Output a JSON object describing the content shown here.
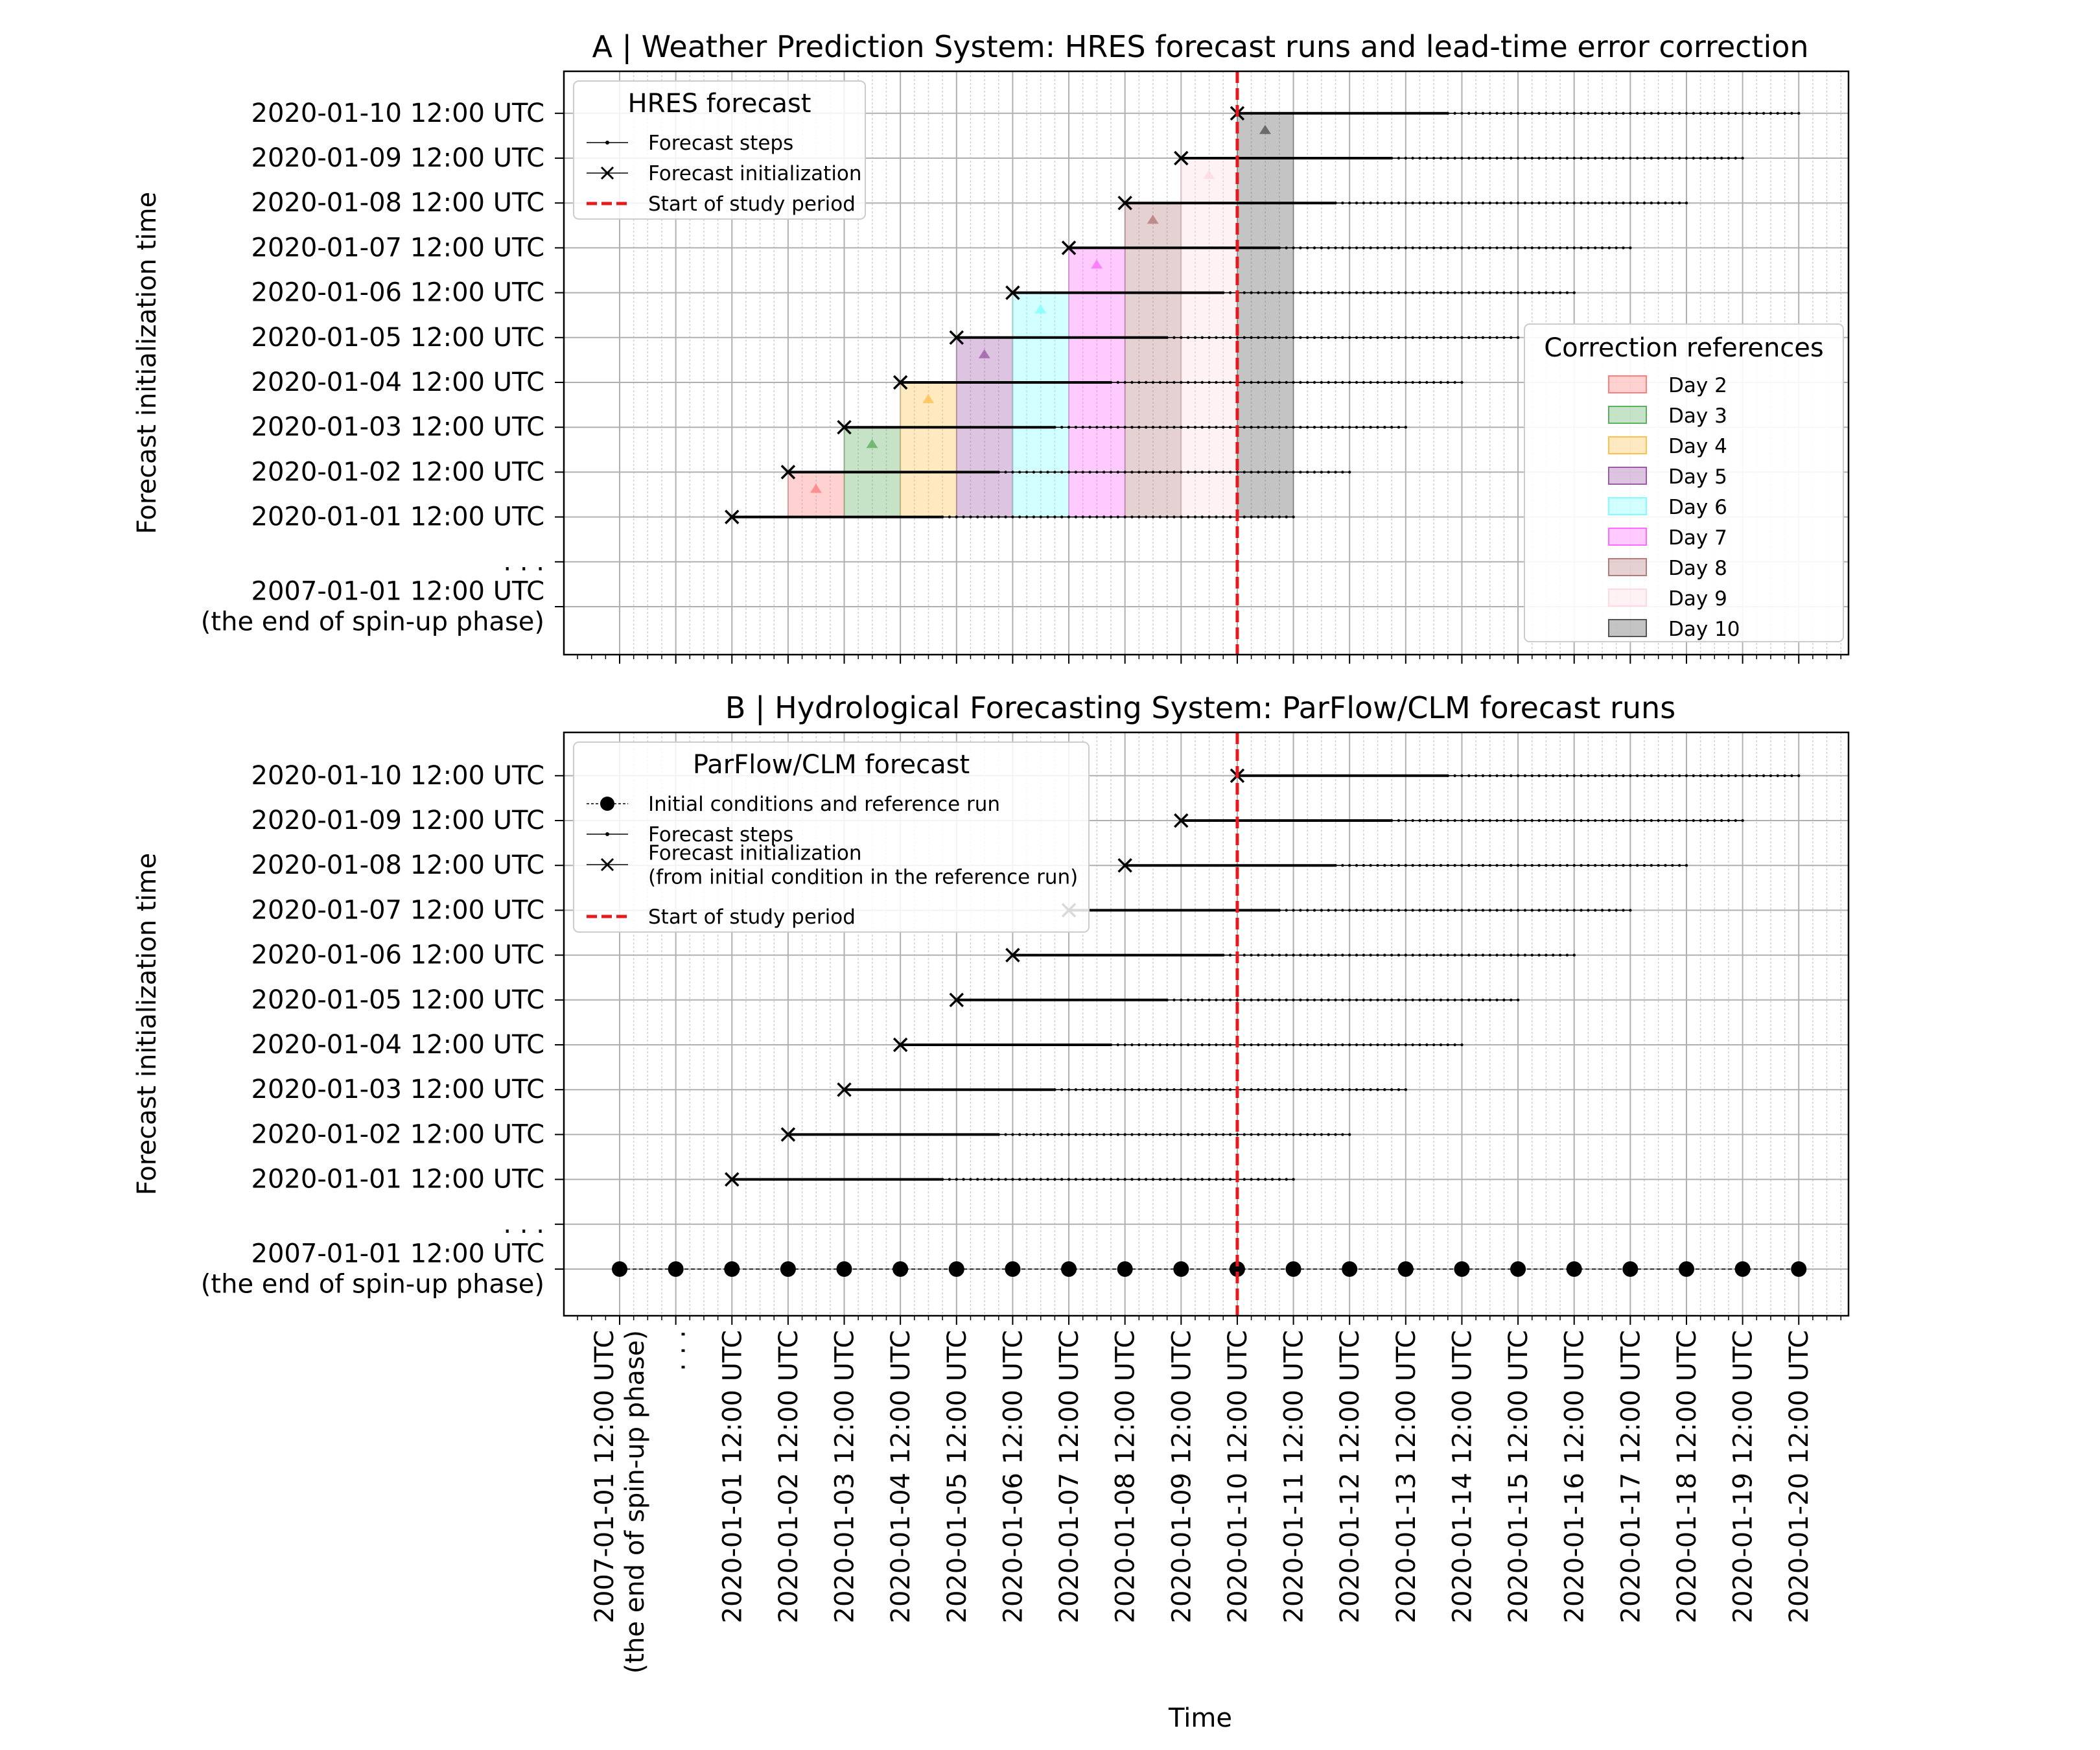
{
  "figure": {
    "xlabel": "Time",
    "time_labels": [
      "2007-01-01 12:00 UTC\n(the end of spin-up phase)",
      ". . .",
      "2020-01-01 12:00 UTC",
      "2020-01-02 12:00 UTC",
      "2020-01-03 12:00 UTC",
      "2020-01-04 12:00 UTC",
      "2020-01-05 12:00 UTC",
      "2020-01-06 12:00 UTC",
      "2020-01-07 12:00 UTC",
      "2020-01-08 12:00 UTC",
      "2020-01-09 12:00 UTC",
      "2020-01-10 12:00 UTC",
      "2020-01-11 12:00 UTC",
      "2020-01-12 12:00 UTC",
      "2020-01-13 12:00 UTC",
      "2020-01-14 12:00 UTC",
      "2020-01-15 12:00 UTC",
      "2020-01-16 12:00 UTC",
      "2020-01-17 12:00 UTC",
      "2020-01-18 12:00 UTC",
      "2020-01-19 12:00 UTC",
      "2020-01-20 12:00 UTC"
    ],
    "init_labels": [
      "2007-01-01 12:00 UTC\n(the end of spin-up phase)",
      ". . .",
      "2020-01-01 12:00 UTC",
      "2020-01-02 12:00 UTC",
      "2020-01-03 12:00 UTC",
      "2020-01-04 12:00 UTC",
      "2020-01-05 12:00 UTC",
      "2020-01-06 12:00 UTC",
      "2020-01-07 12:00 UTC",
      "2020-01-08 12:00 UTC",
      "2020-01-09 12:00 UTC",
      "2020-01-10 12:00 UTC"
    ],
    "colors": {
      "study_line": "#e41a1c",
      "marker": "#000000",
      "grid": "#b0b0b0",
      "day_colors": [
        "#ff7f7f",
        "#5fae5f",
        "#ffc04d",
        "#9e5aa8",
        "#7fffff",
        "#ff6bff",
        "#b57a7a",
        "#ffd9df",
        "#555555"
      ]
    }
  },
  "chart_data": [
    {
      "type": "line",
      "title": "A | Weather Prediction System: HRES forecast runs and lead-time error correction",
      "ylabel": "Forecast initialization time",
      "xlabel": "",
      "grid": true,
      "study_period_start": "2020-01-10 12:00 UTC",
      "forecast_runs": {
        "init_times": [
          "2020-01-01 12:00 UTC",
          "2020-01-02 12:00 UTC",
          "2020-01-03 12:00 UTC",
          "2020-01-04 12:00 UTC",
          "2020-01-05 12:00 UTC",
          "2020-01-06 12:00 UTC",
          "2020-01-07 12:00 UTC",
          "2020-01-08 12:00 UTC",
          "2020-01-09 12:00 UTC",
          "2020-01-10 12:00 UTC"
        ],
        "lead_time_days": 10,
        "hourly_steps_days": 3.75
      },
      "correction_references": {
        "days": [
          "Day 2",
          "Day 3",
          "Day 4",
          "Day 5",
          "Day 6",
          "Day 7",
          "Day 8",
          "Day 9",
          "Day 10"
        ],
        "column_start_dates": [
          "2020-01-02 12:00 UTC",
          "2020-01-03 12:00 UTC",
          "2020-01-04 12:00 UTC",
          "2020-01-05 12:00 UTC",
          "2020-01-06 12:00 UTC",
          "2020-01-07 12:00 UTC",
          "2020-01-08 12:00 UTC",
          "2020-01-09 12:00 UTC",
          "2020-01-10 12:00 UTC"
        ]
      },
      "legend_main": {
        "title": "HRES forecast",
        "placement": "upper left",
        "entries": [
          "Forecast steps",
          "Forecast initialization",
          "Start of study period"
        ]
      },
      "legend_days": {
        "title": "Correction references",
        "placement": "lower right",
        "entries": [
          "Day 2",
          "Day 3",
          "Day 4",
          "Day 5",
          "Day 6",
          "Day 7",
          "Day 8",
          "Day 9",
          "Day 10"
        ]
      }
    },
    {
      "type": "line",
      "title": "B | Hydrological Forecasting System: ParFlow/CLM forecast runs",
      "ylabel": "Forecast initialization time",
      "xlabel": "Time",
      "grid": true,
      "study_period_start": "2020-01-10 12:00 UTC",
      "forecast_runs": {
        "init_times": [
          "2020-01-01 12:00 UTC",
          "2020-01-02 12:00 UTC",
          "2020-01-03 12:00 UTC",
          "2020-01-04 12:00 UTC",
          "2020-01-05 12:00 UTC",
          "2020-01-06 12:00 UTC",
          "2020-01-07 12:00 UTC",
          "2020-01-08 12:00 UTC",
          "2020-01-09 12:00 UTC",
          "2020-01-10 12:00 UTC"
        ],
        "lead_time_days": 10,
        "hourly_steps_days": 3.75
      },
      "reference_run_times": [
        "2007-01-01 12:00 UTC",
        ". . .",
        "2020-01-01 12:00 UTC",
        "2020-01-02 12:00 UTC",
        "2020-01-03 12:00 UTC",
        "2020-01-04 12:00 UTC",
        "2020-01-05 12:00 UTC",
        "2020-01-06 12:00 UTC",
        "2020-01-07 12:00 UTC",
        "2020-01-08 12:00 UTC",
        "2020-01-09 12:00 UTC",
        "2020-01-10 12:00 UTC",
        "2020-01-11 12:00 UTC",
        "2020-01-12 12:00 UTC",
        "2020-01-13 12:00 UTC",
        "2020-01-14 12:00 UTC",
        "2020-01-15 12:00 UTC",
        "2020-01-16 12:00 UTC",
        "2020-01-17 12:00 UTC",
        "2020-01-18 12:00 UTC",
        "2020-01-19 12:00 UTC",
        "2020-01-20 12:00 UTC"
      ],
      "legend_main": {
        "title": "ParFlow/CLM forecast",
        "placement": "upper left",
        "entries": [
          "Initial conditions and reference run",
          "Forecast steps",
          "Forecast initialization\n(from initial condition in the reference run)",
          "Start of study period"
        ]
      }
    }
  ]
}
